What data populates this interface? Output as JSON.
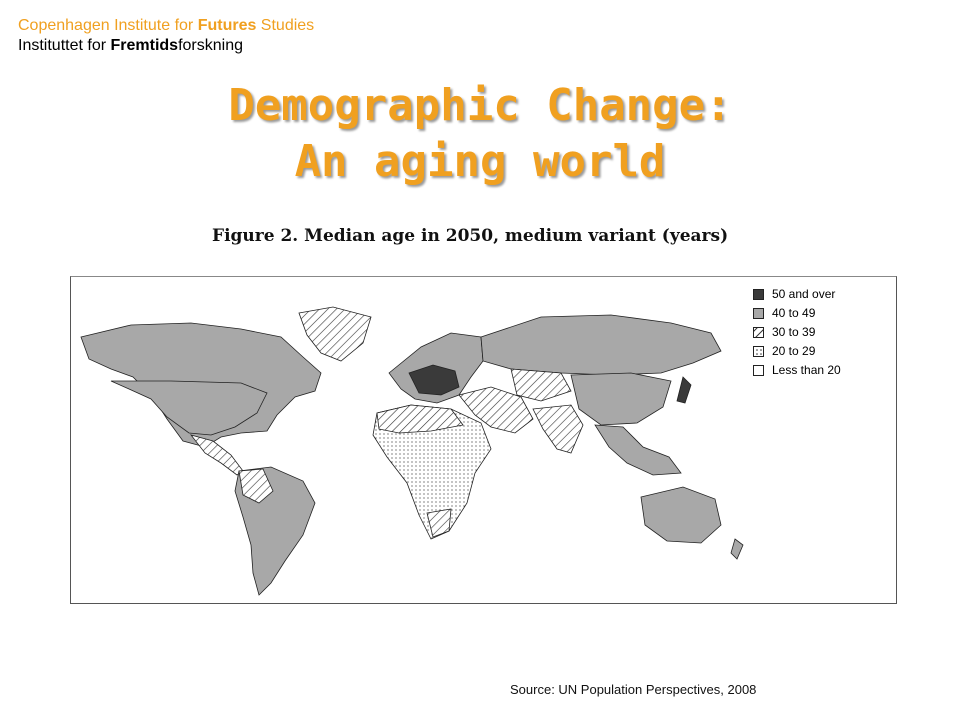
{
  "header": {
    "line1_pre": "Copenhagen Institute for ",
    "line1_bold": "Futures",
    "line1_post": " Studies",
    "line2_pre": "Instituttet for ",
    "line2_bold": "Fremtids",
    "line2_post": "forskning"
  },
  "title": {
    "line1": "Demographic Change:",
    "line2": "An aging world"
  },
  "figure_caption": "Figure 2. Median age in 2050, medium variant (years)",
  "legend": [
    {
      "label": "50 and over",
      "fill": "dark"
    },
    {
      "label": "40 to 49",
      "fill": "gray"
    },
    {
      "label": "30 to 39",
      "fill": "hatch"
    },
    {
      "label": "20 to 29",
      "fill": "dots"
    },
    {
      "label": "Less than 20",
      "fill": "white"
    }
  ],
  "source": "Source: UN Population Perspectives, 2008",
  "colors": {
    "accent": "#f0a020",
    "dark": "#3a3a3a",
    "gray": "#a8a8a8"
  }
}
